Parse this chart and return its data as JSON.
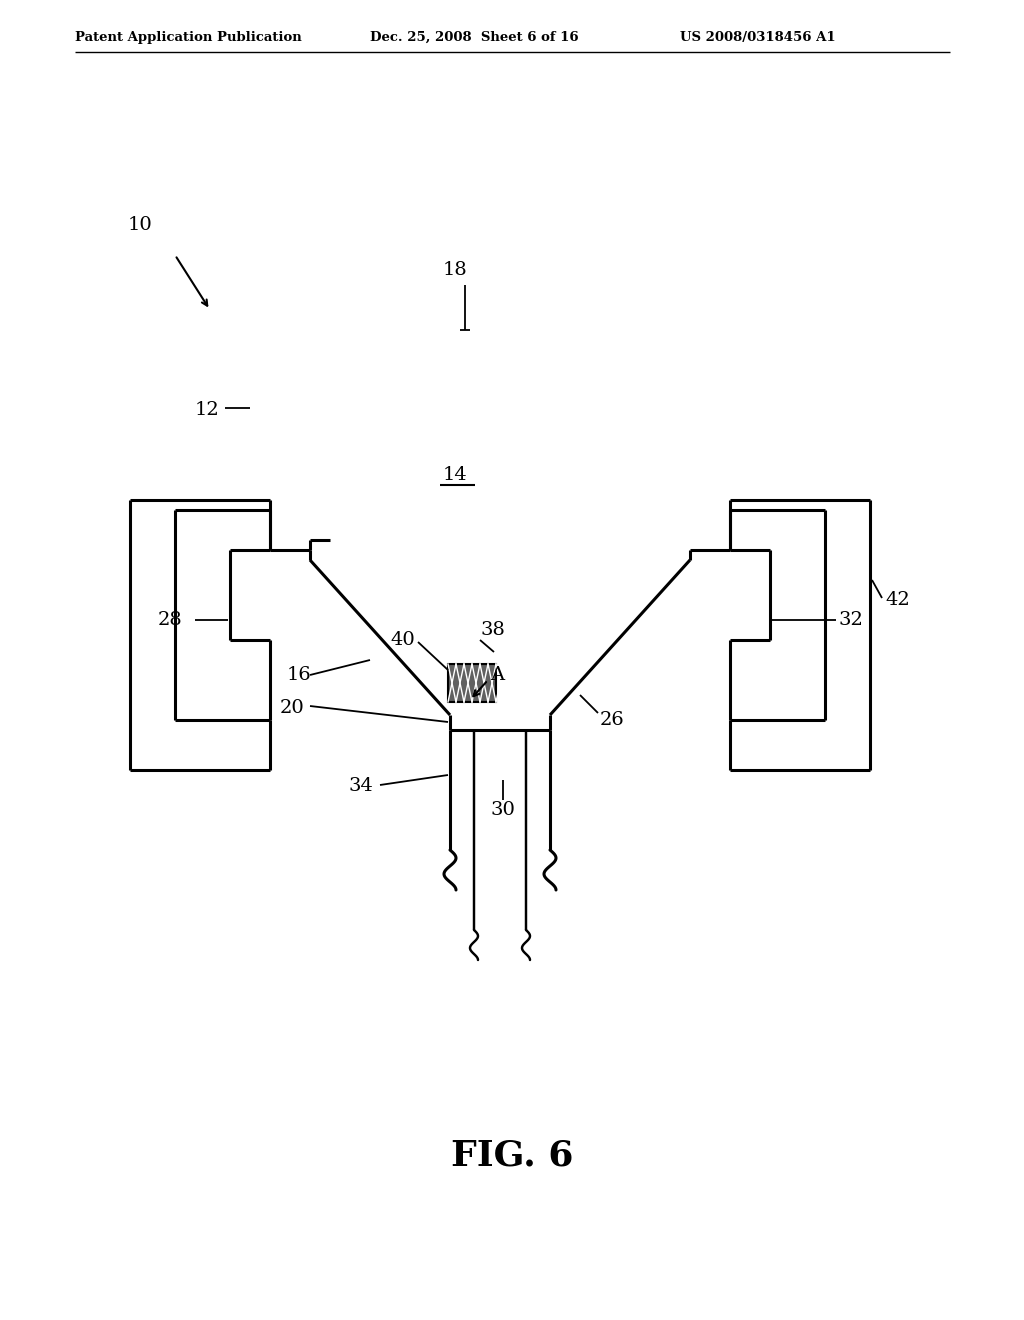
{
  "bg_color": "#ffffff",
  "line_color": "#000000",
  "lw": 2.2,
  "lw_thin": 1.3,
  "header_left": "Patent Application Publication",
  "header_mid": "Dec. 25, 2008  Sheet 6 of 16",
  "header_right": "US 2008/0318456 A1",
  "fig_label": "FIG. 6"
}
